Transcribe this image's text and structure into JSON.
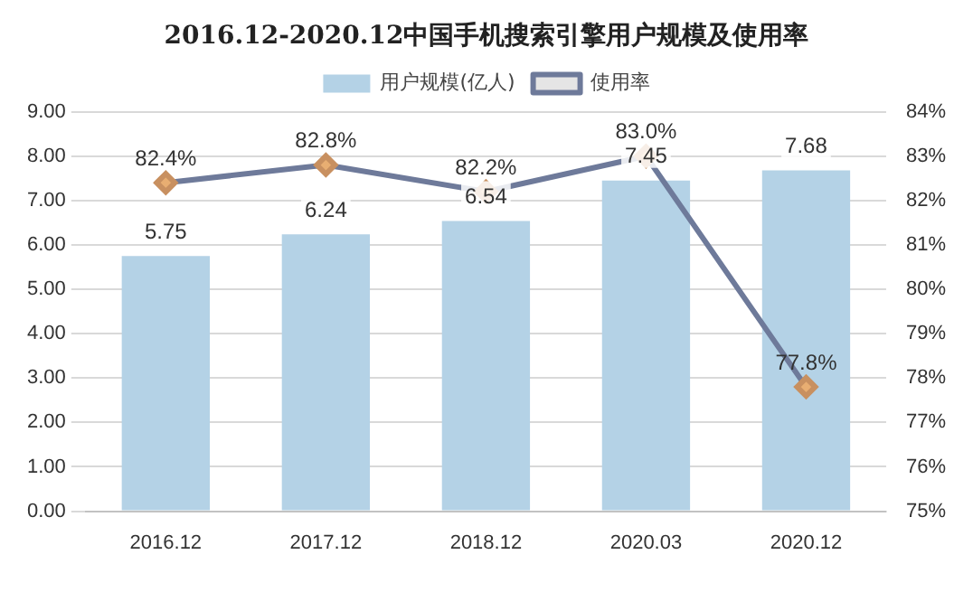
{
  "chart_data": {
    "type": "bar",
    "title": "2016.12-2020.12中国手机搜索引擎用户规模及使用率",
    "categories": [
      "2016.12",
      "2017.12",
      "2018.12",
      "2020.03",
      "2020.12"
    ],
    "series": [
      {
        "name": "用户规模(亿人)",
        "color": "#b4d2e6",
        "values": [
          5.75,
          6.24,
          6.54,
          7.45,
          7.68
        ],
        "value_labels": [
          "5.75",
          "6.24",
          "6.54",
          "7.45",
          "7.68"
        ]
      },
      {
        "name": "使用率",
        "type": "line",
        "axis": "y2",
        "color": "#6e7a9a",
        "marker": "diamond",
        "values": [
          82.4,
          82.8,
          82.2,
          83.0,
          77.8
        ],
        "value_labels": [
          "82.4%",
          "82.8%",
          "82.2%",
          "83.0%",
          "77.8%"
        ]
      }
    ],
    "ylim": [
      0,
      9
    ],
    "yticks": [
      {
        "value": 0,
        "label": "0.00"
      },
      {
        "value": 1,
        "label": "1.00"
      },
      {
        "value": 2,
        "label": "2.00"
      },
      {
        "value": 3,
        "label": "3.00"
      },
      {
        "value": 4,
        "label": "4.00"
      },
      {
        "value": 5,
        "label": "5.00"
      },
      {
        "value": 6,
        "label": "6.00"
      },
      {
        "value": 7,
        "label": "7.00"
      },
      {
        "value": 8,
        "label": "8.00"
      },
      {
        "value": 9,
        "label": "9.00"
      }
    ],
    "y2lim": [
      75,
      84
    ],
    "y2ticks": [
      {
        "value": 75,
        "label": "75%"
      },
      {
        "value": 76,
        "label": "76%"
      },
      {
        "value": 77,
        "label": "77%"
      },
      {
        "value": 78,
        "label": "78%"
      },
      {
        "value": 79,
        "label": "79%"
      },
      {
        "value": 80,
        "label": "80%"
      },
      {
        "value": 81,
        "label": "81%"
      },
      {
        "value": 82,
        "label": "82%"
      },
      {
        "value": 83,
        "label": "83%"
      },
      {
        "value": 84,
        "label": "84%"
      }
    ],
    "grid": "y",
    "legend": "top"
  }
}
